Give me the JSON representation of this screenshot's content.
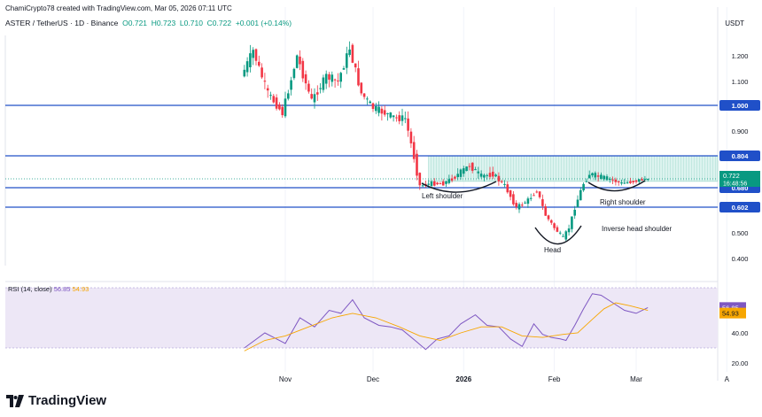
{
  "header": {
    "credit": "ChamiCrypto78 created with TradingView.com, Mar 05, 2026 07:11 UTC",
    "symbol_line": "ASTER / TetherUS · 1D · Binance",
    "ohlc": {
      "open": "O0.721",
      "high": "H0.723",
      "low": "L0.710",
      "close": "C0.722",
      "change": "+0.001 (+0.14%)"
    },
    "currency": "USDT"
  },
  "rsi_header": {
    "label": "RSI (14, close)",
    "rsi_value": "56.85",
    "ma_value": "54.93"
  },
  "footer": {
    "logo_text": "TradingView"
  },
  "chart_data": {
    "type": "candlestick",
    "symbol": "ASTER/USDT",
    "timeframe": "1D",
    "y_axis_ticks": [
      1.2,
      1.1,
      0.9,
      0.5,
      0.4
    ],
    "x_axis_ticks": [
      "Nov",
      "Dec",
      "2026",
      "Feb",
      "Mar",
      "A"
    ],
    "horizontal_levels": [
      {
        "value": 1.0,
        "label": "1.000"
      },
      {
        "value": 0.804,
        "label": "0.804"
      },
      {
        "value": 0.68,
        "label": "0.680"
      },
      {
        "value": 0.602,
        "label": "0.602"
      }
    ],
    "current_price": {
      "value": 0.722,
      "label": "0.722",
      "countdown": "16:48:56"
    },
    "resistance_zone": {
      "top": 0.804,
      "bottom": 0.71
    },
    "annotations": [
      "Left shoulder",
      "Head",
      "Right shoulder",
      "Inverse head shoulder"
    ],
    "price_path": [
      {
        "date": "2025-10-18",
        "close": 1.12
      },
      {
        "date": "2025-10-22",
        "close": 1.22
      },
      {
        "date": "2025-10-27",
        "close": 1.05
      },
      {
        "date": "2025-11-01",
        "close": 0.97
      },
      {
        "date": "2025-11-06",
        "close": 1.2
      },
      {
        "date": "2025-11-11",
        "close": 1.02
      },
      {
        "date": "2025-11-16",
        "close": 1.12
      },
      {
        "date": "2025-11-20",
        "close": 1.1
      },
      {
        "date": "2025-11-24",
        "close": 1.23
      },
      {
        "date": "2025-11-28",
        "close": 1.05
      },
      {
        "date": "2025-12-02",
        "close": 0.99
      },
      {
        "date": "2025-12-06",
        "close": 0.97
      },
      {
        "date": "2025-12-10",
        "close": 0.95
      },
      {
        "date": "2025-12-13",
        "close": 0.95
      },
      {
        "date": "2025-12-16",
        "close": 0.8
      },
      {
        "date": "2025-12-18",
        "close": 0.69
      },
      {
        "date": "2025-12-22",
        "close": 0.7
      },
      {
        "date": "2025-12-26",
        "close": 0.7
      },
      {
        "date": "2025-12-30",
        "close": 0.73
      },
      {
        "date": "2026-01-04",
        "close": 0.77
      },
      {
        "date": "2026-01-08",
        "close": 0.73
      },
      {
        "date": "2026-01-12",
        "close": 0.74
      },
      {
        "date": "2026-01-16",
        "close": 0.69
      },
      {
        "date": "2026-01-20",
        "close": 0.6
      },
      {
        "date": "2026-01-24",
        "close": 0.63
      },
      {
        "date": "2026-01-27",
        "close": 0.67
      },
      {
        "date": "2026-01-30",
        "close": 0.57
      },
      {
        "date": "2026-02-02",
        "close": 0.52
      },
      {
        "date": "2026-02-05",
        "close": 0.48
      },
      {
        "date": "2026-02-07",
        "close": 0.52
      },
      {
        "date": "2026-02-09",
        "close": 0.6
      },
      {
        "date": "2026-02-12",
        "close": 0.7
      },
      {
        "date": "2026-02-14",
        "close": 0.74
      },
      {
        "date": "2026-02-17",
        "close": 0.73
      },
      {
        "date": "2026-02-21",
        "close": 0.72
      },
      {
        "date": "2026-02-25",
        "close": 0.7
      },
      {
        "date": "2026-03-01",
        "close": 0.71
      },
      {
        "date": "2026-03-05",
        "close": 0.722
      }
    ],
    "rsi": {
      "y_axis_ticks": [
        40,
        20
      ],
      "band": [
        30,
        70
      ],
      "current": 56.85,
      "ma_current": 54.93,
      "series": [
        {
          "name": "RSI",
          "points": [
            {
              "date": "2025-10-18",
              "value": 30
            },
            {
              "date": "2025-10-25",
              "value": 40
            },
            {
              "date": "2025-11-01",
              "value": 33
            },
            {
              "date": "2025-11-06",
              "value": 50
            },
            {
              "date": "2025-11-11",
              "value": 44
            },
            {
              "date": "2025-11-16",
              "value": 55
            },
            {
              "date": "2025-11-20",
              "value": 53
            },
            {
              "date": "2025-11-24",
              "value": 62
            },
            {
              "date": "2025-11-28",
              "value": 50
            },
            {
              "date": "2025-12-03",
              "value": 45
            },
            {
              "date": "2025-12-07",
              "value": 44
            },
            {
              "date": "2025-12-11",
              "value": 42
            },
            {
              "date": "2025-12-16",
              "value": 34
            },
            {
              "date": "2025-12-19",
              "value": 29
            },
            {
              "date": "2025-12-23",
              "value": 36
            },
            {
              "date": "2025-12-27",
              "value": 38
            },
            {
              "date": "2025-12-31",
              "value": 46
            },
            {
              "date": "2026-01-05",
              "value": 52
            },
            {
              "date": "2026-01-09",
              "value": 45
            },
            {
              "date": "2026-01-13",
              "value": 44
            },
            {
              "date": "2026-01-17",
              "value": 36
            },
            {
              "date": "2026-01-21",
              "value": 31
            },
            {
              "date": "2026-01-25",
              "value": 46
            },
            {
              "date": "2026-01-28",
              "value": 39
            },
            {
              "date": "2026-01-31",
              "value": 37
            },
            {
              "date": "2026-02-03",
              "value": 36
            },
            {
              "date": "2026-02-05",
              "value": 35
            },
            {
              "date": "2026-02-08",
              "value": 45
            },
            {
              "date": "2026-02-11",
              "value": 56
            },
            {
              "date": "2026-02-14",
              "value": 66
            },
            {
              "date": "2026-02-17",
              "value": 65
            },
            {
              "date": "2026-02-21",
              "value": 60
            },
            {
              "date": "2026-02-25",
              "value": 55
            },
            {
              "date": "2026-03-01",
              "value": 53
            },
            {
              "date": "2026-03-05",
              "value": 56.85
            }
          ]
        },
        {
          "name": "RSI-based MA",
          "points": [
            {
              "date": "2025-10-18",
              "value": 28
            },
            {
              "date": "2025-10-25",
              "value": 35
            },
            {
              "date": "2025-11-01",
              "value": 38
            },
            {
              "date": "2025-11-09",
              "value": 44
            },
            {
              "date": "2025-11-17",
              "value": 50
            },
            {
              "date": "2025-11-24",
              "value": 53
            },
            {
              "date": "2025-12-02",
              "value": 50
            },
            {
              "date": "2025-12-10",
              "value": 44
            },
            {
              "date": "2025-12-17",
              "value": 38
            },
            {
              "date": "2025-12-24",
              "value": 35
            },
            {
              "date": "2025-12-31",
              "value": 40
            },
            {
              "date": "2026-01-07",
              "value": 44
            },
            {
              "date": "2026-01-14",
              "value": 44
            },
            {
              "date": "2026-01-21",
              "value": 38
            },
            {
              "date": "2026-01-28",
              "value": 37
            },
            {
              "date": "2026-02-04",
              "value": 39
            },
            {
              "date": "2026-02-09",
              "value": 40
            },
            {
              "date": "2026-02-14",
              "value": 49
            },
            {
              "date": "2026-02-18",
              "value": 56
            },
            {
              "date": "2026-02-22",
              "value": 60
            },
            {
              "date": "2026-02-27",
              "value": 58
            },
            {
              "date": "2026-03-05",
              "value": 54.93
            }
          ]
        }
      ]
    }
  }
}
